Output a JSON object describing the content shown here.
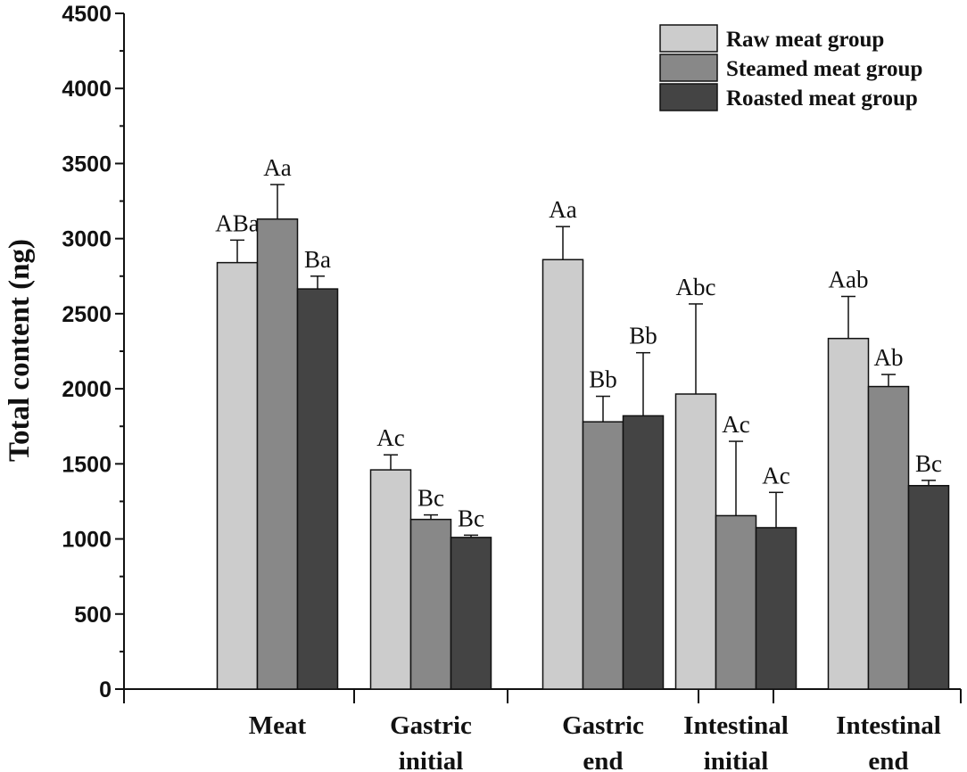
{
  "chart_data": {
    "type": "bar",
    "title": "",
    "xlabel": "",
    "ylabel": "Total content (ng)",
    "ylim": [
      0,
      4500
    ],
    "yticks": [
      0,
      500,
      1000,
      1500,
      2000,
      2500,
      3000,
      3500,
      4000,
      4500
    ],
    "categories": [
      [
        "Meat"
      ],
      [
        "Gastric",
        "initial"
      ],
      [
        "Gastric",
        "end"
      ],
      [
        "Intestinal",
        "initial"
      ],
      [
        "Intestinal",
        "end"
      ]
    ],
    "series": [
      {
        "name": "Raw meat group",
        "color": "#cccccc",
        "values": [
          2840,
          1460,
          2860,
          1965,
          2335
        ],
        "errors": [
          150,
          100,
          220,
          600,
          280
        ],
        "labels": [
          "ABa",
          "Ac",
          "Aa",
          "Abc",
          "Aab"
        ]
      },
      {
        "name": "Steamed meat group",
        "color": "#888888",
        "values": [
          3130,
          1130,
          1780,
          1155,
          2015
        ],
        "errors": [
          230,
          30,
          170,
          495,
          80
        ],
        "labels": [
          "Aa",
          "Bc",
          "Bb",
          "Ac",
          "Ab"
        ]
      },
      {
        "name": "Roasted meat group",
        "color": "#444444",
        "values": [
          2665,
          1010,
          1820,
          1075,
          1355
        ],
        "errors": [
          85,
          15,
          420,
          235,
          35
        ],
        "labels": [
          "Ba",
          "Bc",
          "Bb",
          "Ac",
          "Bc"
        ]
      }
    ],
    "legend_position": "top-right",
    "grid": false
  }
}
